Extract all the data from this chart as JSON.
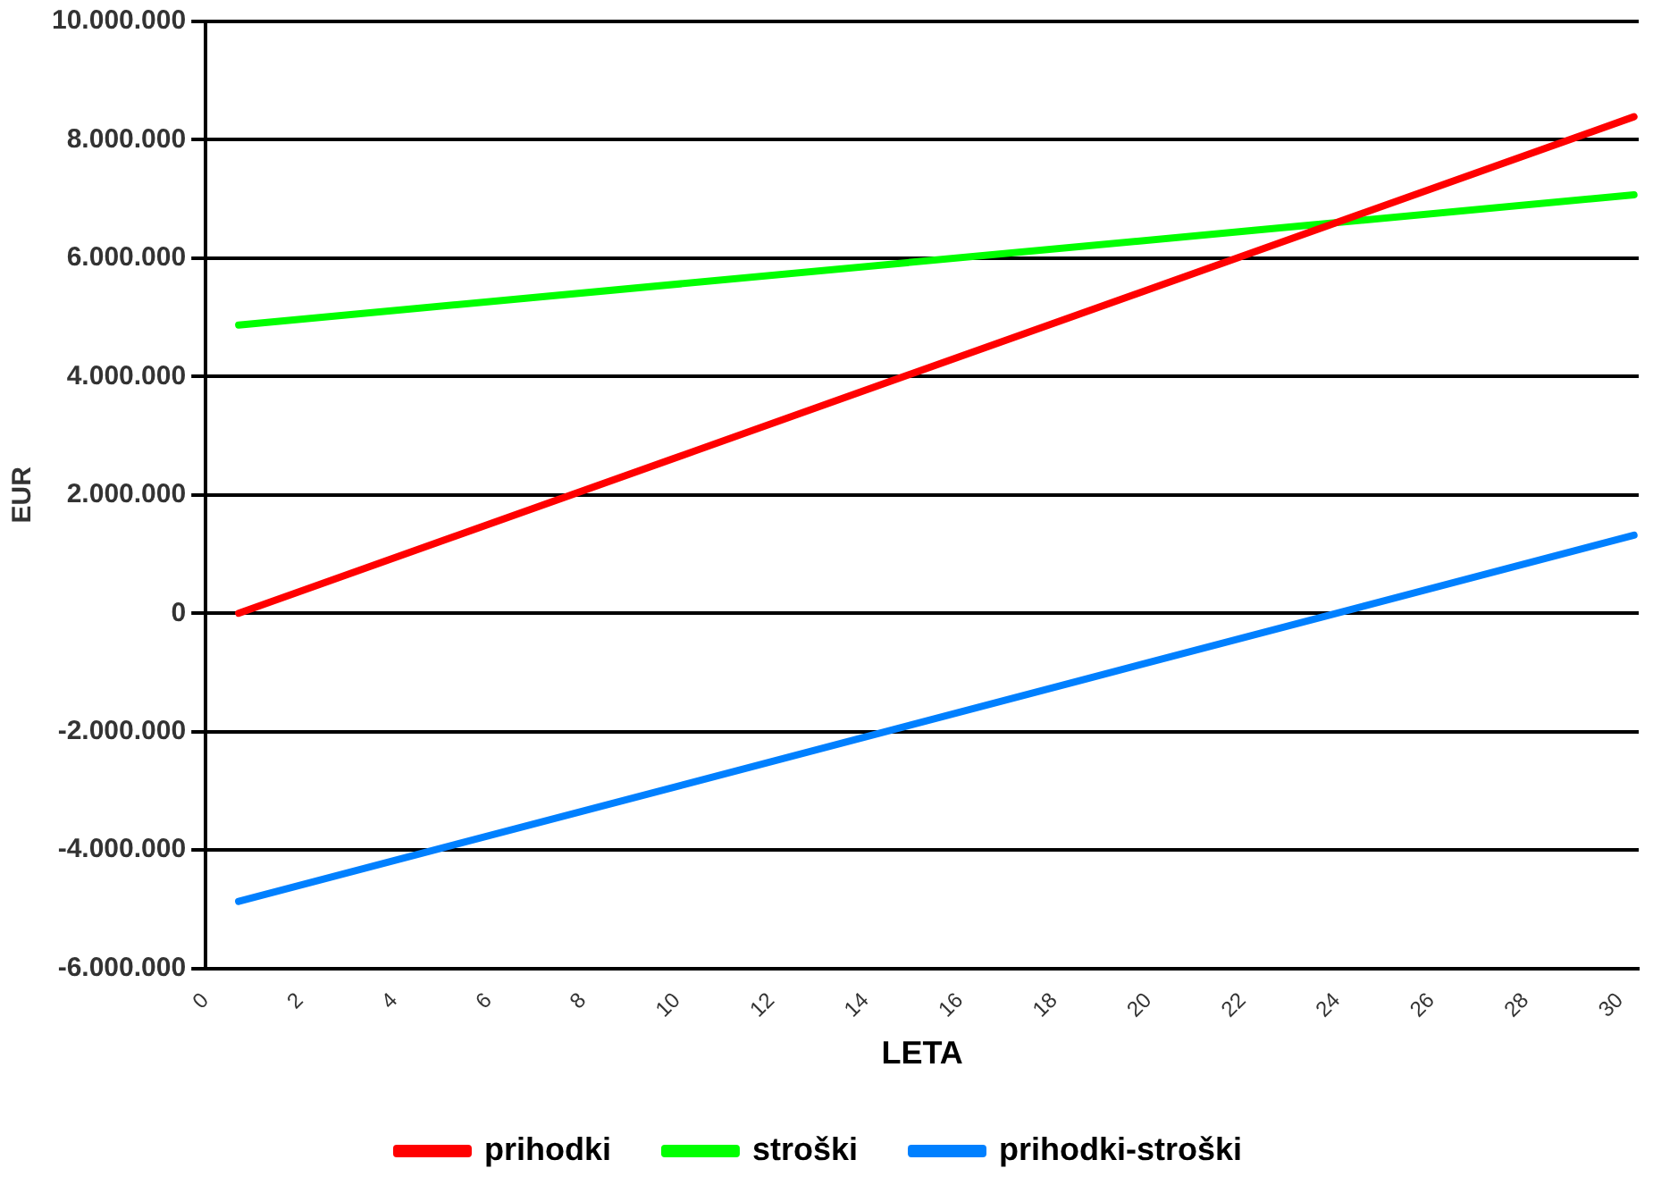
{
  "chart_data": {
    "type": "line",
    "xlabel": "LETA",
    "ylabel": "EUR",
    "xlim": [
      0,
      30.4
    ],
    "xticks": [
      0,
      2,
      4,
      6,
      8,
      10,
      12,
      14,
      16,
      18,
      20,
      22,
      24,
      26,
      28,
      30
    ],
    "ylim": [
      -6000000,
      10000000
    ],
    "yticks": [
      {
        "value": -6000000,
        "label": "-6.000.000"
      },
      {
        "value": -4000000,
        "label": "-4.000.000"
      },
      {
        "value": -2000000,
        "label": "-2.000.000"
      },
      0,
      {
        "value": 2000000,
        "label": "2.000.000"
      },
      {
        "value": 4000000,
        "label": "4.000.000"
      },
      {
        "value": 6000000,
        "label": "6.000.000"
      },
      {
        "value": 8000000,
        "label": "8.000.000"
      },
      {
        "value": 10000000,
        "label": "10.000.000"
      }
    ],
    "x": [
      0.7,
      30.3
    ],
    "series": [
      {
        "name": "prihodki",
        "color": "#ff0000",
        "values": [
          0,
          8390000
        ]
      },
      {
        "name": "stroški",
        "color": "#00ff00",
        "values": [
          4870000,
          7070000
        ]
      },
      {
        "name": "prihodki-stroški",
        "color": "#0080ff",
        "values": [
          -4870000,
          1320000
        ]
      }
    ],
    "grid": "y",
    "legend": "bottom",
    "marker": "none",
    "line_style": "solid"
  }
}
